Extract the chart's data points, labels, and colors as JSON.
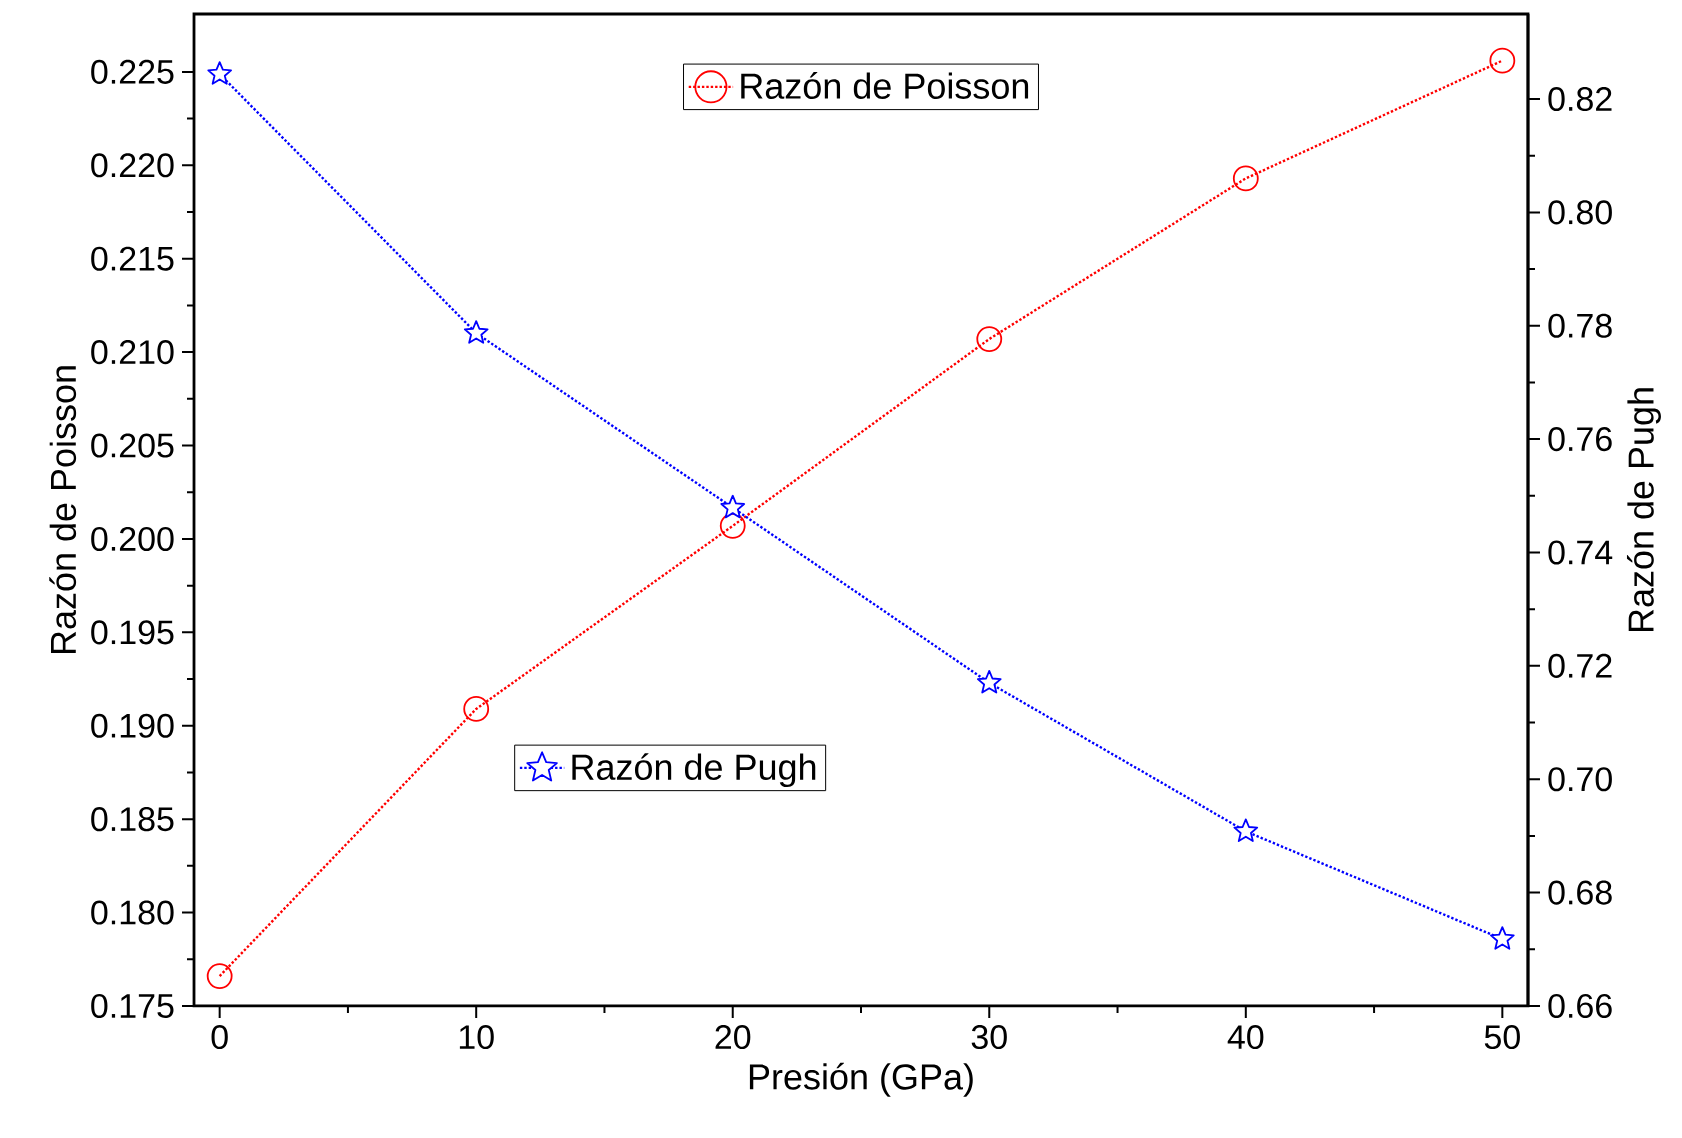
{
  "chart_data": {
    "type": "line",
    "xlabel": "Presión (GPa)",
    "ylabel": "Razón de Poisson",
    "y2label": "Razón de Pugh",
    "x": [
      0,
      10,
      20,
      30,
      40,
      50
    ],
    "series": [
      {
        "name": "Razón de Poisson",
        "color": "#ff0000",
        "marker": "circle",
        "values": [
          0.1766,
          0.1909,
          0.2007,
          0.2107,
          0.2193,
          0.2256
        ]
      },
      {
        "name": "Razón de Pugh",
        "color": "#0000ff",
        "marker": "star",
        "axis": "y2",
        "values": [
          0.8244,
          0.7787,
          0.7479,
          0.717,
          0.6908,
          0.6718
        ]
      }
    ],
    "xlim": [
      -1,
      51
    ],
    "xticks": [
      0,
      10,
      20,
      30,
      40,
      50
    ],
    "ylim": [
      0.175,
      0.2281
    ],
    "yticks": [
      0.175,
      {
        "value": 0.18,
        "label": "0.180"
      },
      0.185,
      {
        "value": 0.19,
        "label": "0.190"
      },
      0.195,
      {
        "value": 0.2,
        "label": "0.200"
      },
      0.205,
      {
        "value": 0.21,
        "label": "0.210"
      },
      0.215,
      {
        "value": 0.22,
        "label": "0.220"
      },
      0.225
    ],
    "y2lim": [
      0.66,
      0.835
    ],
    "y2ticks": [
      0.66,
      0.68,
      {
        "value": 0.7,
        "label": "0.70"
      },
      0.72,
      0.74,
      0.76,
      0.78,
      {
        "value": 0.8,
        "label": "0.80"
      },
      0.82
    ],
    "line_style": "dotted",
    "legend": "top",
    "grid": false
  }
}
